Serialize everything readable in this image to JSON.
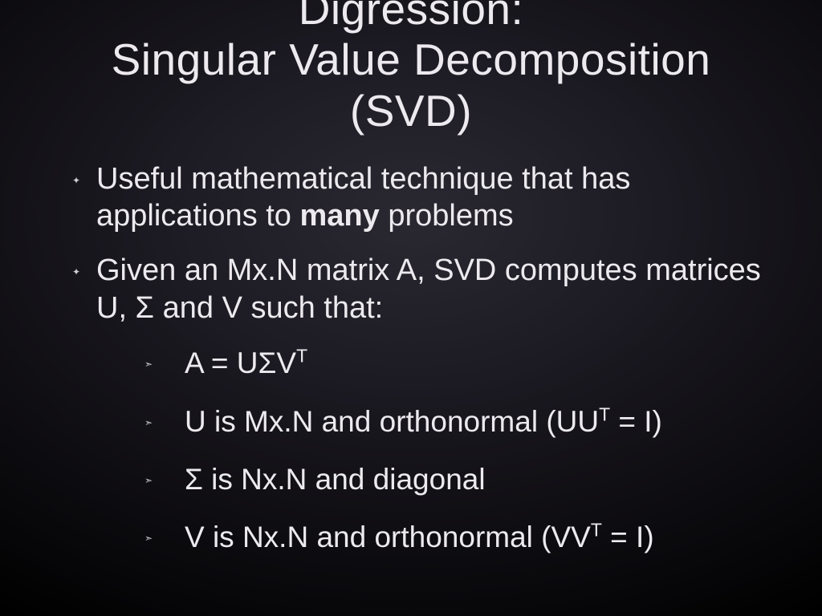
{
  "slide": {
    "background": {
      "type": "radial-gradient",
      "center_color": "#2a2830",
      "mid_color": "#1c1a22",
      "outer_color": "#0d0c10",
      "edge_color": "#000000"
    },
    "text_color": "#eceaee",
    "font_family": "Helvetica Neue",
    "title": {
      "line1": "Digression:",
      "line2": "Singular Value Decomposition",
      "line3": "(SVD)",
      "fontsize": 55,
      "weight": 300
    },
    "bullets_l1": {
      "fontsize": 38,
      "marker": "✦",
      "items": [
        {
          "text_pre": "Useful mathematical technique that has applications to ",
          "bold": "many",
          "text_post": " problems"
        },
        {
          "text_pre": "Given an Mx.N matrix A, SVD computes matrices U, Σ and V such that:",
          "bold": "",
          "text_post": ""
        }
      ]
    },
    "bullets_l2": {
      "fontsize": 37,
      "marker": "➣",
      "items": [
        {
          "pre": "A = UΣV",
          "sup": "T",
          "post": ""
        },
        {
          "pre": "U is Mx.N and orthonormal (UU",
          "sup": "T",
          "post": " = I)"
        },
        {
          "pre": "Σ is Nx.N and diagonal",
          "sup": "",
          "post": ""
        },
        {
          "pre": "V is Nx.N and orthonormal (VV",
          "sup": "T",
          "post": " = I)"
        }
      ]
    }
  }
}
